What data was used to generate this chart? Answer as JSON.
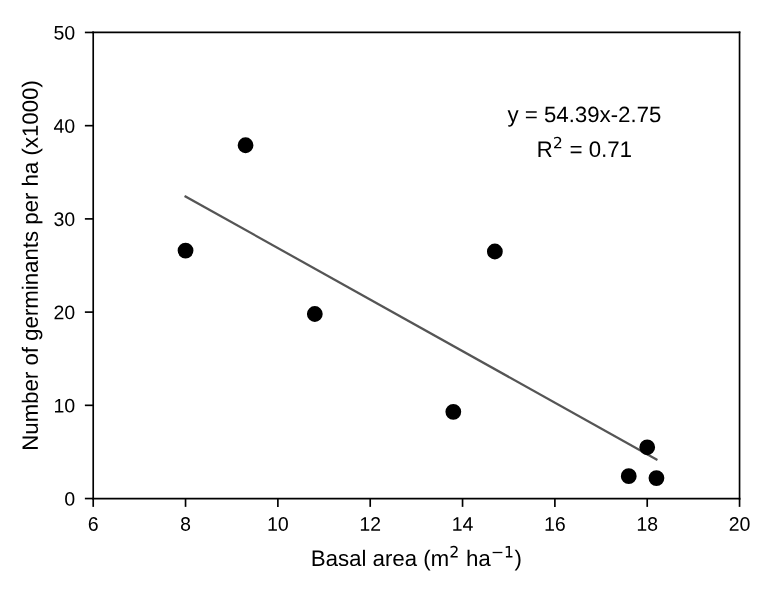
{
  "chart_data": {
    "type": "scatter",
    "xlabel": "Basal area (m$^{2}$ ha$^{−1}$)",
    "ylabel": "Number of germinants per ha (x1000)",
    "xlim": [
      6,
      20
    ],
    "xticks": [
      6,
      8,
      10,
      12,
      14,
      16,
      18,
      20
    ],
    "ylim": [
      0,
      50
    ],
    "yticks": [
      0,
      10,
      20,
      30,
      40,
      50
    ],
    "grid": false,
    "legend": false,
    "marker": "circle",
    "series": [
      {
        "color": "#000000",
        "x": [
          8.0,
          9.3,
          10.8,
          13.8,
          14.7,
          17.6,
          18.0,
          18.2
        ],
        "values": [
          26.6,
          37.9,
          19.8,
          9.3,
          26.5,
          2.4,
          5.5,
          2.2
        ]
      },
      {
        "type": "line",
        "color": "#555555",
        "x": [
          8.0,
          18.2
        ],
        "values": [
          32.4,
          4.2
        ],
        "marker": "none",
        "line_style": "solid"
      }
    ],
    "annotations": [
      "y = 54.39x-2.75",
      "R$^{2}$ = 0.71"
    ]
  }
}
